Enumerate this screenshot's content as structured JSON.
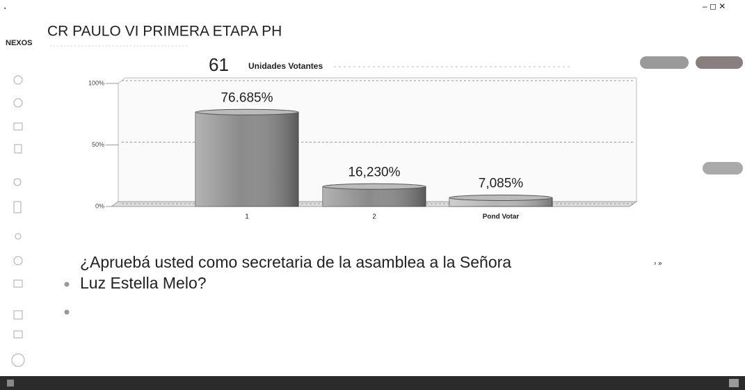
{
  "header": {
    "logo": "NEXOS",
    "title": "CR PAULO VI PRIMERA ETAPA PH"
  },
  "voters": {
    "count": "61",
    "label": "Unidades Votantes"
  },
  "question": {
    "line1": "¿Apruebá usted como secretaria de la asamblea a la Señora",
    "line2": "Luz Estella Melo?"
  },
  "chart_data": {
    "type": "bar",
    "categories": [
      "1",
      "2",
      "Pond Votar"
    ],
    "values": [
      76.685,
      16.23,
      7.085
    ],
    "value_labels": [
      "76.685%",
      "16,230%",
      "7,085%"
    ],
    "colors": [
      "#8a8a8a",
      "#8a8a8a",
      "#b5b5b5"
    ],
    "ylim": [
      0,
      100
    ],
    "yticks": [
      {
        "value": 0,
        "label": "0%"
      },
      {
        "value": 50,
        "label": "50%"
      },
      {
        "value": 100,
        "label": "100%"
      }
    ],
    "grid": true
  }
}
